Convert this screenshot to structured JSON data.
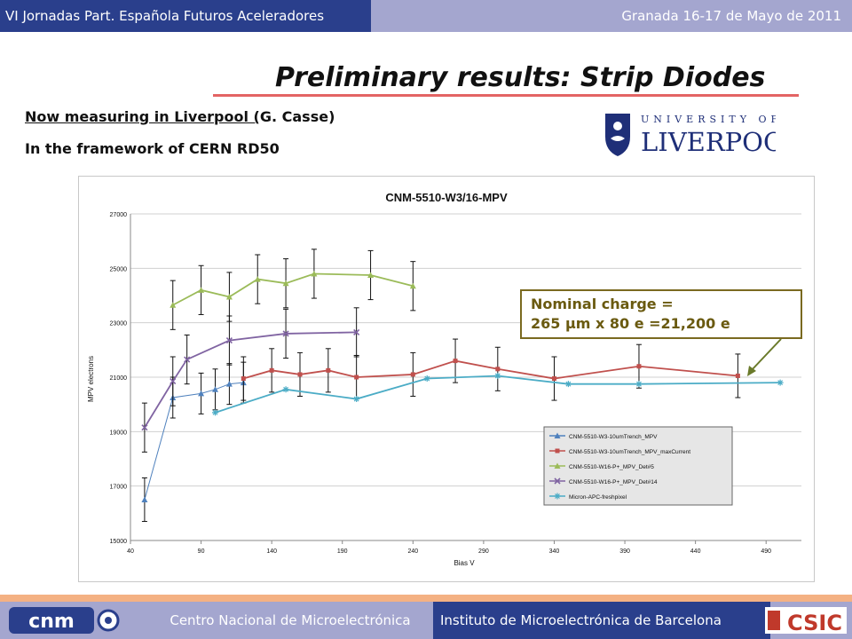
{
  "header": {
    "left_text": "VI Jornadas Part. Española Futuros Aceleradores",
    "right_text": "Granada 16-17 de Mayo de 2011"
  },
  "slide": {
    "title": "Preliminary results: Strip Diodes",
    "line1_underlined": "Now measuring in Liverpool (",
    "line1_rest": "G. Casse)",
    "line2": "In the framework of CERN RD50"
  },
  "logos": {
    "liverpool_text_top": "UNIVERSITY OF",
    "liverpool_text_main": "LIVERPOOL",
    "cnm": "cnm",
    "csic": "CSIC"
  },
  "annotation": {
    "line1": "Nominal charge =",
    "line2": "265 µm x 80 e =21,200 e"
  },
  "footer": {
    "left": "Centro Nacional de Microelectrónica",
    "right": "Instituto de Microelectrónica de Barcelona"
  },
  "colors": {
    "header_dark": "#2a3f8c",
    "header_light": "#a4a6cf",
    "title_underline": "#e36464",
    "annotation_border": "#7a6a20"
  },
  "chart_data": {
    "type": "line",
    "title": "CNM-5510-W3/16-MPV",
    "xlabel": "Bias V",
    "ylabel": "MPV electrons",
    "xlim": [
      40,
      515
    ],
    "ylim": [
      15000,
      27000
    ],
    "xticks": [
      40,
      90,
      140,
      190,
      240,
      290,
      340,
      390,
      440,
      490
    ],
    "yticks": [
      15000,
      17000,
      19000,
      21000,
      23000,
      25000,
      27000
    ],
    "grid": "horizontal",
    "legend_position": "bottom-right",
    "series": [
      {
        "name": "CNM-5510-W3-10umTrench_MPV",
        "color": "#4f81bd",
        "marker": "triangle",
        "points": [
          [
            50,
            16500
          ],
          [
            70,
            20250
          ],
          [
            90,
            20400
          ],
          [
            100,
            20550
          ],
          [
            110,
            20750
          ],
          [
            120,
            20800
          ]
        ],
        "errors": [
          800,
          750,
          750,
          750,
          750,
          750
        ]
      },
      {
        "name": "CNM-5510-W3-10umTrench_MPV_maxCurrent",
        "color": "#c0504d",
        "marker": "square",
        "points": [
          [
            120,
            20950
          ],
          [
            140,
            21250
          ],
          [
            160,
            21100
          ],
          [
            180,
            21250
          ],
          [
            200,
            21000
          ],
          [
            240,
            21100
          ],
          [
            270,
            21600
          ],
          [
            300,
            21300
          ],
          [
            340,
            20950
          ],
          [
            400,
            21400
          ],
          [
            470,
            21050
          ]
        ],
        "errors": [
          800,
          800,
          800,
          800,
          800,
          800,
          800,
          800,
          800,
          800,
          800
        ]
      },
      {
        "name": "CNM-5510-W16-P+_MPV_Det#5",
        "color": "#9bbb59",
        "marker": "triangle",
        "points": [
          [
            70,
            23650
          ],
          [
            90,
            24200
          ],
          [
            110,
            23950
          ],
          [
            130,
            24600
          ],
          [
            150,
            24450
          ],
          [
            170,
            24800
          ],
          [
            210,
            24750
          ],
          [
            240,
            24350
          ]
        ],
        "errors": [
          900,
          900,
          900,
          900,
          900,
          900,
          900,
          900
        ]
      },
      {
        "name": "CNM-5510-W16-P+_MPV_Det#14",
        "color": "#8064a2",
        "marker": "x",
        "points": [
          [
            50,
            19150
          ],
          [
            70,
            20850
          ],
          [
            80,
            21650
          ],
          [
            110,
            22350
          ],
          [
            150,
            22600
          ],
          [
            200,
            22650
          ]
        ],
        "errors": [
          900,
          900,
          900,
          900,
          900,
          900
        ]
      },
      {
        "name": "Micron-APC-freshpixel",
        "color": "#4bacc6",
        "marker": "star",
        "points": [
          [
            100,
            19700
          ],
          [
            150,
            20550
          ],
          [
            200,
            20200
          ],
          [
            250,
            20950
          ],
          [
            300,
            21050
          ],
          [
            350,
            20750
          ],
          [
            400,
            20750
          ],
          [
            500,
            20800
          ]
        ],
        "errors": [
          0,
          0,
          0,
          0,
          0,
          0,
          0,
          0
        ]
      }
    ]
  }
}
